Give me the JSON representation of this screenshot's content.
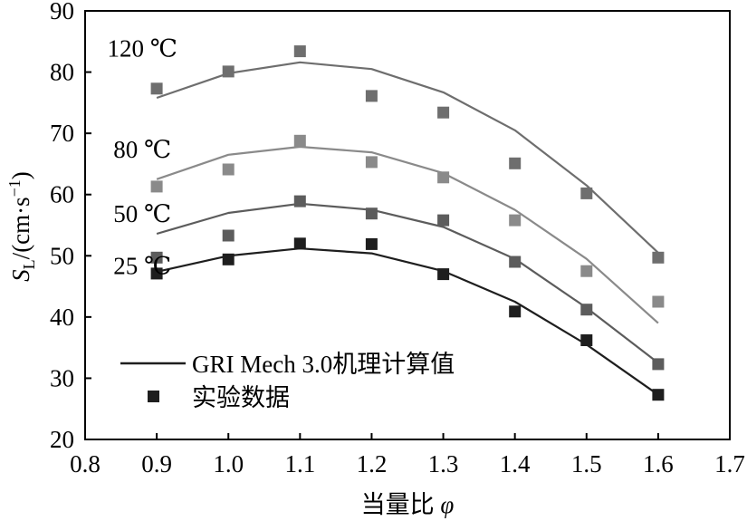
{
  "chart_data": {
    "type": "line",
    "xlabel": "当量比 φ",
    "xlabel_main": "当量比 ",
    "xlabel_symbol": "φ",
    "ylabel_main": "S",
    "ylabel_sub": "L",
    "ylabel_unit": "/(cm·s",
    "ylabel_sup": "−1",
    "ylabel_close": ")",
    "xlim": [
      0.8,
      1.7
    ],
    "ylim": [
      20,
      90
    ],
    "xticks": [
      0.8,
      0.9,
      1.0,
      1.1,
      1.2,
      1.3,
      1.4,
      1.5,
      1.6,
      1.7
    ],
    "xtick_labels": [
      "0.8",
      "0.9",
      "1.0",
      "1.1",
      "1.2",
      "1.3",
      "1.4",
      "1.5",
      "1.6",
      "1.7"
    ],
    "yticks": [
      20,
      30,
      40,
      50,
      60,
      70,
      80,
      90
    ],
    "ytick_labels": [
      "20",
      "30",
      "40",
      "50",
      "60",
      "70",
      "80",
      "90"
    ],
    "grid": false,
    "x": [
      0.9,
      1.0,
      1.1,
      1.2,
      1.3,
      1.4,
      1.5,
      1.6
    ],
    "series": [
      {
        "label": "120 ℃",
        "label_anchor": [
          0.88,
          82.5
        ],
        "color": "#6e6e6e",
        "model": [
          75.8,
          79.8,
          81.6,
          80.5,
          76.7,
          70.5,
          61.5,
          50.5
        ],
        "experiment": [
          77.3,
          80.1,
          83.4,
          76.1,
          73.4,
          65.1,
          60.2,
          49.7
        ]
      },
      {
        "label": "80 ℃",
        "label_anchor": [
          0.88,
          66.0
        ],
        "color": "#8a8a8a",
        "model": [
          62.5,
          66.5,
          67.8,
          66.9,
          63.5,
          57.5,
          49.5,
          39.0
        ],
        "experiment": [
          61.3,
          64.1,
          68.8,
          65.3,
          62.8,
          55.8,
          47.5,
          42.5
        ]
      },
      {
        "label": "50 ℃",
        "label_anchor": [
          0.88,
          55.5
        ],
        "color": "#5c5c5c",
        "model": [
          53.6,
          57.0,
          58.5,
          57.5,
          54.7,
          49.5,
          41.5,
          32.5
        ],
        "experiment": [
          49.7,
          53.3,
          58.9,
          56.9,
          55.8,
          49.0,
          41.2,
          32.3
        ]
      },
      {
        "label": "25 ℃",
        "label_anchor": [
          0.88,
          47.0
        ],
        "color": "#1e1e1e",
        "model": [
          47.4,
          50.0,
          51.2,
          50.4,
          47.5,
          42.5,
          35.5,
          27.3
        ],
        "experiment": [
          47.1,
          49.4,
          52.0,
          51.9,
          47.0,
          40.9,
          36.2,
          27.3
        ]
      }
    ],
    "legend": {
      "position": "bottom-left",
      "line_label": "GRI Mech 3.0机理计算值",
      "marker_label": "实验数据"
    }
  }
}
